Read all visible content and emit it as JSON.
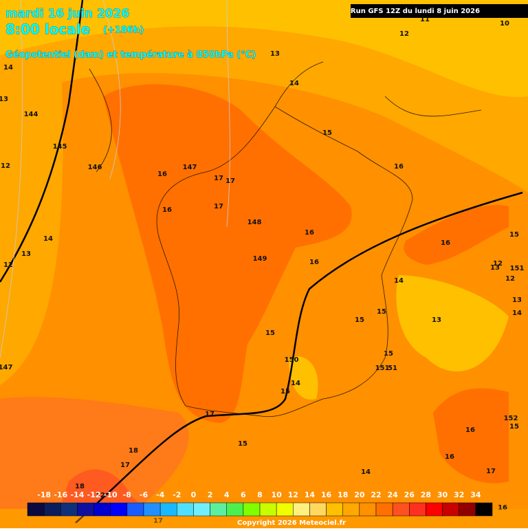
{
  "header": {
    "date": "mardi 16 juin 2026",
    "time": "8:00 locale",
    "lead": "(+186h)",
    "field": "Géopotentiel (dam) et température à 850hPa (°C)",
    "run": "Run GFS 12Z du lundi 8 juin 2026"
  },
  "map": {
    "labels": [
      "144",
      "145",
      "146",
      "147",
      "148",
      "149",
      "150",
      "151",
      "51",
      "152",
      "151",
      "147",
      "12",
      "11",
      "10",
      "13",
      "14",
      "15",
      "16",
      "16",
      "17",
      "17",
      "16",
      "17",
      "16",
      "16",
      "16",
      "15",
      "12",
      "13",
      "14",
      "15",
      "15",
      "13",
      "13",
      "14",
      "15",
      "15",
      "14",
      "15",
      "17",
      "15",
      "18",
      "17",
      "18",
      "12",
      "17",
      "14",
      "16",
      "16",
      "17",
      "16",
      "15",
      "12",
      "14",
      "13",
      "12",
      "14",
      "13",
      "12"
    ]
  },
  "colorbar": {
    "labels": [
      -18,
      -16,
      -14,
      -12,
      -10,
      -8,
      -6,
      -4,
      -2,
      0,
      2,
      4,
      6,
      8,
      10,
      12,
      14,
      16,
      18,
      20,
      22,
      24,
      26,
      28,
      30,
      32,
      34
    ],
    "colors": [
      "#0a0a40",
      "#0c1d5c",
      "#10307c",
      "#1010a0",
      "#0000d0",
      "#0000ff",
      "#1a5cff",
      "#2290ff",
      "#1ab8ff",
      "#50e0ff",
      "#70f0ff",
      "#5bf0a0",
      "#4cf050",
      "#80ff00",
      "#c8ff00",
      "#f0ff00",
      "#fff080",
      "#ffd860",
      "#ffc000",
      "#ffa800",
      "#ff9000",
      "#ff7000",
      "#ff5020",
      "#ff3020",
      "#ff0000",
      "#c80000",
      "#900000",
      "#000000"
    ]
  },
  "footer": {
    "copyright": "Copyright 2026 Meteociel.fr"
  }
}
